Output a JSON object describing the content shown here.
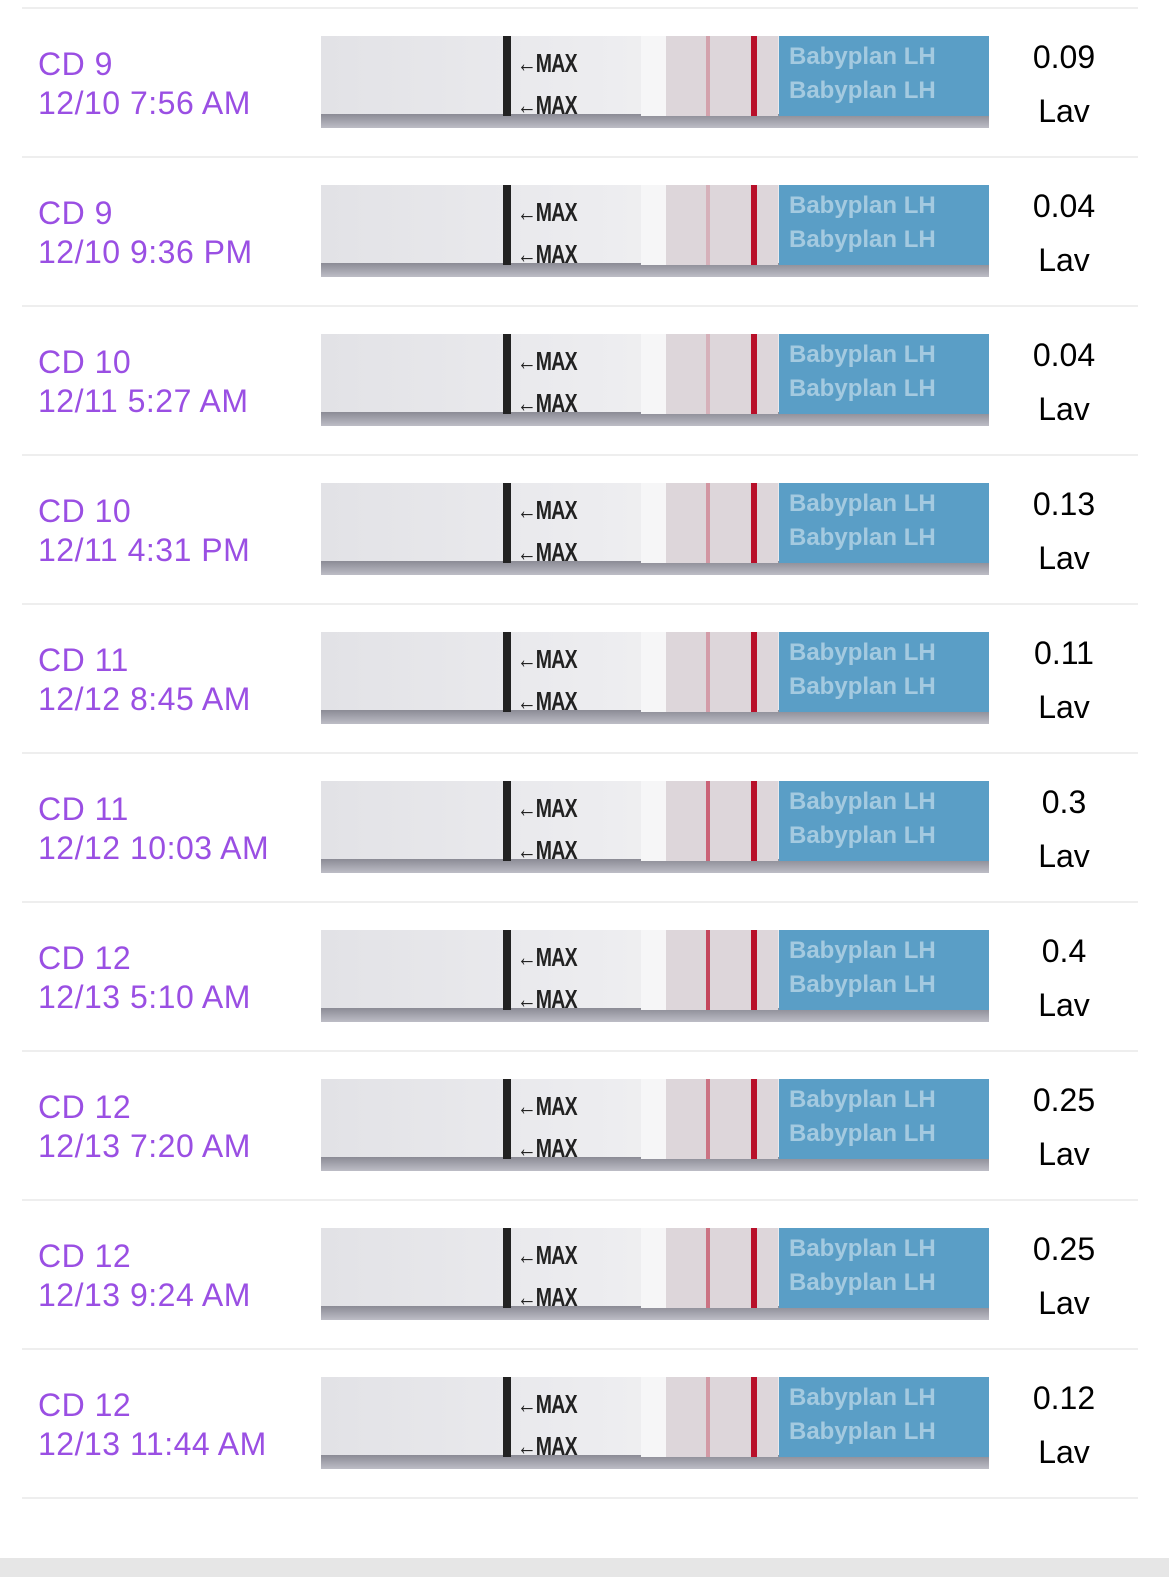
{
  "accent_color": "#9a4fe3",
  "strip_brand_text": "Babyplan LH",
  "strip_marker_text": "←MAX",
  "entries": [
    {
      "cycle_day": "CD 9",
      "datetime": "12/10 7:56 AM",
      "value": "0.09",
      "unit": "Lav"
    },
    {
      "cycle_day": "CD 9",
      "datetime": "12/10 9:36 PM",
      "value": "0.04",
      "unit": "Lav"
    },
    {
      "cycle_day": "CD 10",
      "datetime": "12/11 5:27 AM",
      "value": "0.04",
      "unit": "Lav"
    },
    {
      "cycle_day": "CD 10",
      "datetime": "12/11 4:31 PM",
      "value": "0.13",
      "unit": "Lav"
    },
    {
      "cycle_day": "CD 11",
      "datetime": "12/12 8:45 AM",
      "value": "0.11",
      "unit": "Lav"
    },
    {
      "cycle_day": "CD 11",
      "datetime": "12/12 10:03 AM",
      "value": "0.3",
      "unit": "Lav"
    },
    {
      "cycle_day": "CD 12",
      "datetime": "12/13 5:10 AM",
      "value": "0.4",
      "unit": "Lav"
    },
    {
      "cycle_day": "CD 12",
      "datetime": "12/13 7:20 AM",
      "value": "0.25",
      "unit": "Lav"
    },
    {
      "cycle_day": "CD 12",
      "datetime": "12/13 9:24 AM",
      "value": "0.25",
      "unit": "Lav"
    },
    {
      "cycle_day": "CD 12",
      "datetime": "12/13 11:44 AM",
      "value": "0.12",
      "unit": "Lav"
    }
  ]
}
